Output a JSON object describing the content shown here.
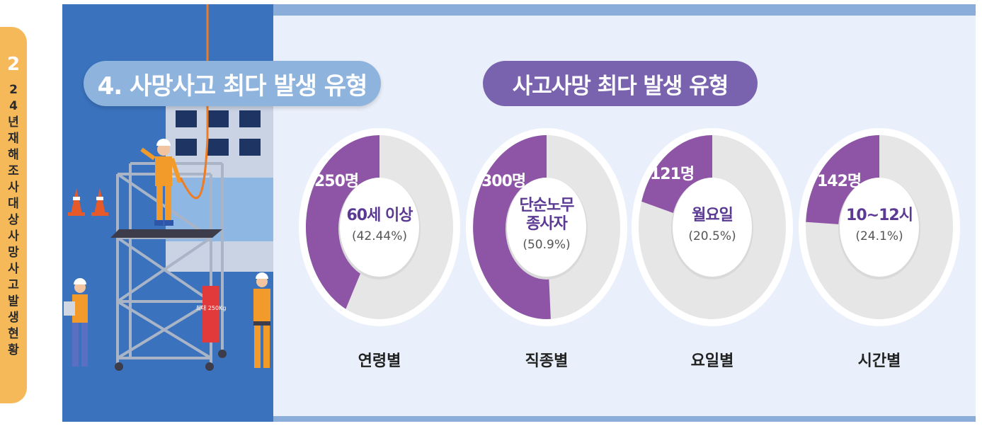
{
  "side_tab": {
    "number": "2",
    "text": "24년 재해조사 대상 사망사고 발생현황"
  },
  "title": "4. 사망사고 최다 발생 유형",
  "subtitle": "사고사망 최다 발생 유형",
  "scene": {
    "sign_text": "최대 250Kg"
  },
  "colors": {
    "accent": "#8e55a7",
    "ring": "#e6e6e6",
    "panel_left": "#3a72bd",
    "panel_right": "#eaf0fb"
  },
  "donuts": [
    {
      "count": "250명",
      "label_lines": [
        "60세 이상"
      ],
      "percent": "(42.44%)",
      "value": 0.4244,
      "category": "연령별"
    },
    {
      "count": "300명",
      "label_lines": [
        "단순노무",
        "종사자"
      ],
      "percent": "(50.9%)",
      "value": 0.509,
      "category": "직종별"
    },
    {
      "count": "121명",
      "label_lines": [
        "월요일"
      ],
      "percent": "(20.5%)",
      "value": 0.205,
      "category": "요일별"
    },
    {
      "count": "142명",
      "label_lines": [
        "10~12시"
      ],
      "percent": "(24.1%)",
      "value": 0.241,
      "category": "시간별"
    }
  ]
}
